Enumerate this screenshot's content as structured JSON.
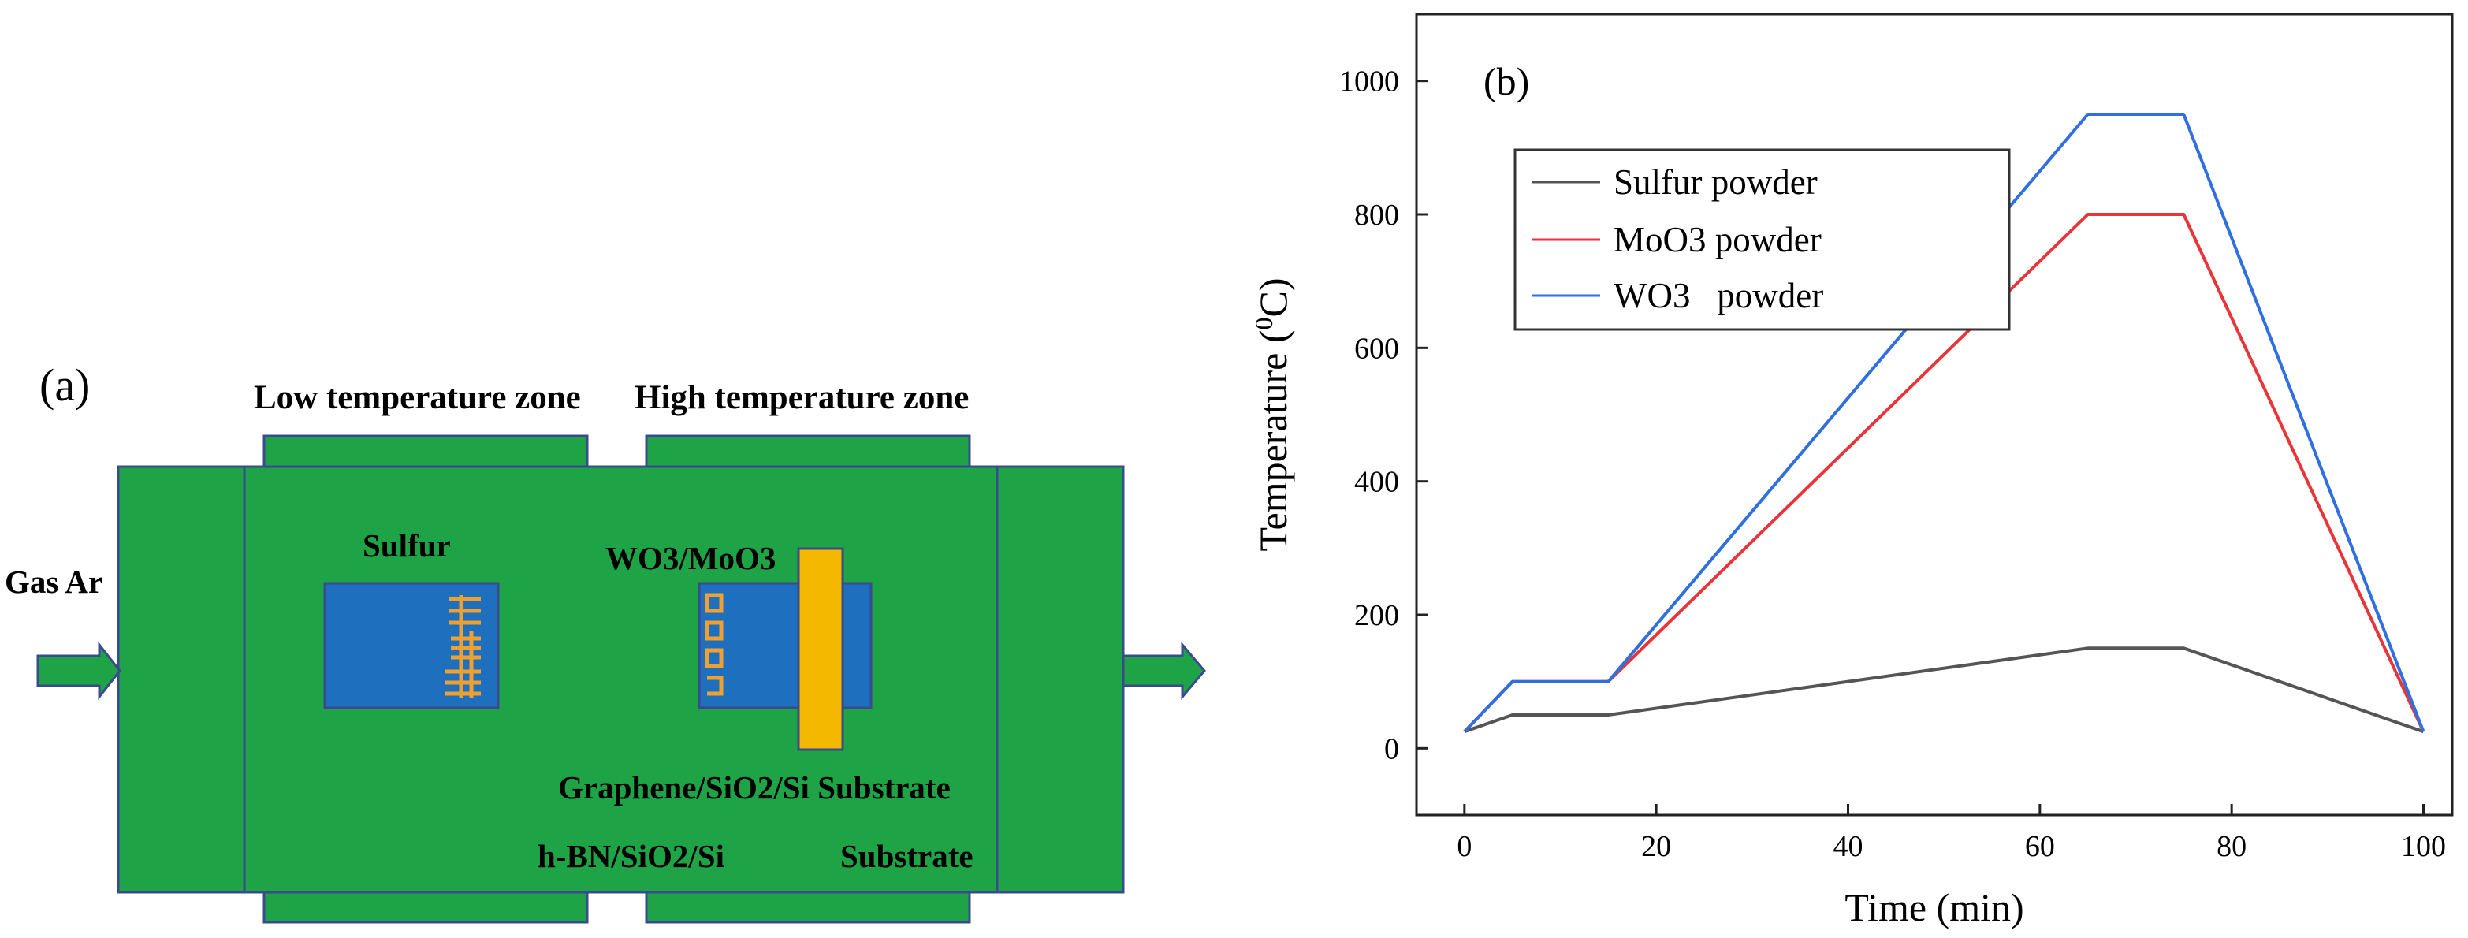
{
  "panel_a": {
    "label": "(a)",
    "low_zone": "Low temperature zone",
    "high_zone": "High temperature zone",
    "gas": "Gas Ar",
    "sulfur": "Sulfur",
    "precursor": "WO3/MoO3",
    "substrate_line1": "Graphene/SiO2/Si Substrate",
    "substrate_line2_a": "h-BN/SiO2/Si",
    "substrate_line2_b": "Substrate",
    "colors": {
      "tube": "#1fa347",
      "border": "#3a4a8f",
      "boat": "#1f6fbf",
      "substrate": "#f5b800",
      "powder": "#f0a030"
    }
  },
  "chart_data": {
    "type": "line",
    "panel_label": "(b)",
    "xlabel": "Time (min)",
    "ylabel": "Temperature (0C)",
    "xlim": [
      -5,
      103
    ],
    "ylim": [
      -100,
      1100
    ],
    "xticks": [
      "0",
      "20",
      "40",
      "60",
      "80",
      "100"
    ],
    "yticks": [
      "0",
      "200",
      "400",
      "600",
      "800",
      "1000"
    ],
    "legend_position": "top-left",
    "grid": false,
    "series": [
      {
        "name": "Sulfur powder",
        "color": "#555555",
        "x": [
          0,
          5,
          15,
          65,
          75,
          100
        ],
        "y": [
          25,
          50,
          50,
          150,
          150,
          25
        ]
      },
      {
        "name": "MoO3 powder",
        "color": "#e8353a",
        "x": [
          0,
          5,
          15,
          65,
          75,
          100
        ],
        "y": [
          25,
          100,
          100,
          800,
          800,
          25
        ]
      },
      {
        "name": "WO3   powder",
        "color": "#2f6fe0",
        "x": [
          0,
          5,
          15,
          65,
          75,
          100
        ],
        "y": [
          25,
          100,
          100,
          950,
          950,
          25
        ]
      }
    ]
  }
}
